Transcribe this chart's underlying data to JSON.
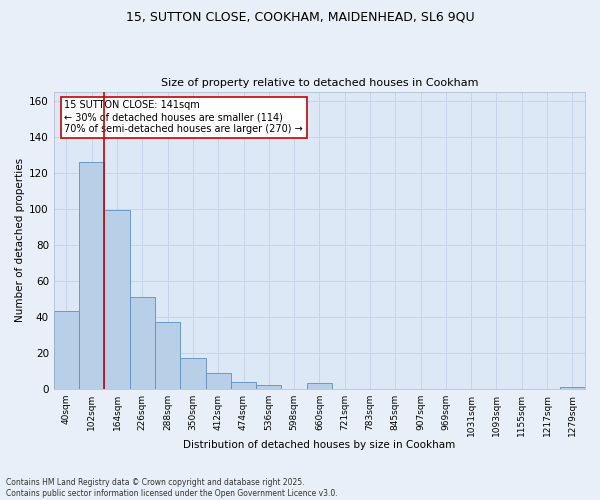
{
  "title1": "15, SUTTON CLOSE, COOKHAM, MAIDENHEAD, SL6 9QU",
  "title2": "Size of property relative to detached houses in Cookham",
  "xlabel": "Distribution of detached houses by size in Cookham",
  "ylabel": "Number of detached properties",
  "bar_labels": [
    "40sqm",
    "102sqm",
    "164sqm",
    "226sqm",
    "288sqm",
    "350sqm",
    "412sqm",
    "474sqm",
    "536sqm",
    "598sqm",
    "660sqm",
    "721sqm",
    "783sqm",
    "845sqm",
    "907sqm",
    "969sqm",
    "1031sqm",
    "1093sqm",
    "1155sqm",
    "1217sqm",
    "1279sqm"
  ],
  "bar_values": [
    43,
    126,
    99,
    51,
    37,
    17,
    9,
    4,
    2,
    0,
    3,
    0,
    0,
    0,
    0,
    0,
    0,
    0,
    0,
    0,
    1
  ],
  "bar_color": "#b8cfe8",
  "bar_edge_color": "#5b8fc4",
  "vline_x": 1.5,
  "vline_color": "#cc0000",
  "annotation_text": "15 SUTTON CLOSE: 141sqm\n← 30% of detached houses are smaller (114)\n70% of semi-detached houses are larger (270) →",
  "annotation_box_color": "#ffffff",
  "annotation_box_edge": "#cc0000",
  "ylim": [
    0,
    165
  ],
  "yticks": [
    0,
    20,
    40,
    60,
    80,
    100,
    120,
    140,
    160
  ],
  "footer": "Contains HM Land Registry data © Crown copyright and database right 2025.\nContains public sector information licensed under the Open Government Licence v3.0.",
  "grid_color": "#c8d4e8",
  "bg_color": "#dce8f5",
  "fig_bg_color": "#e8eff8"
}
